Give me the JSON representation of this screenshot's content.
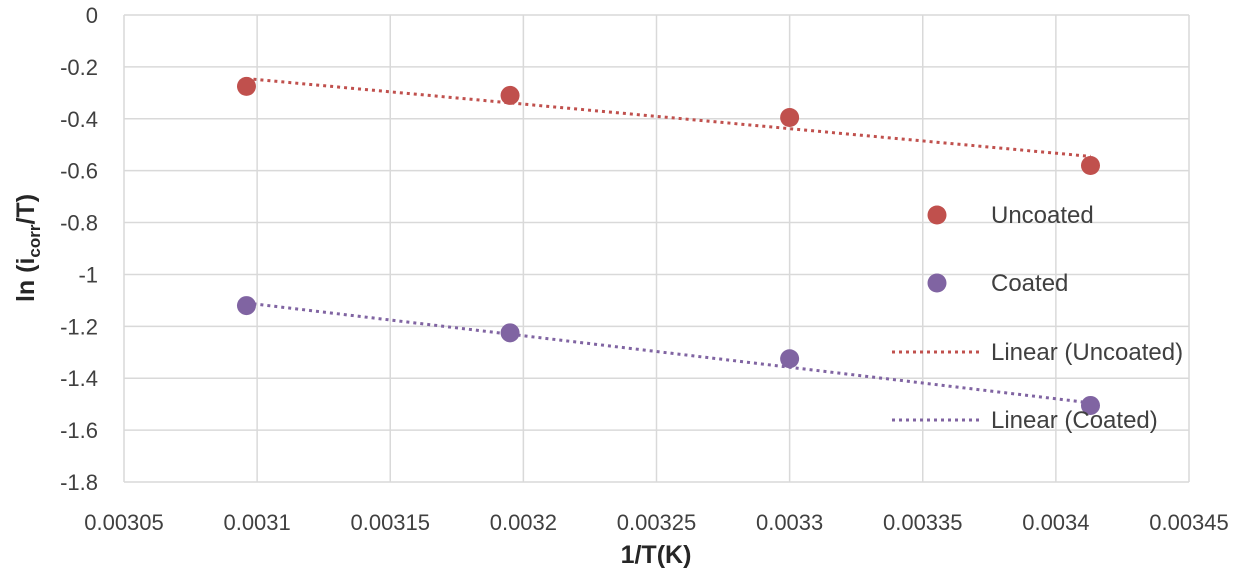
{
  "chart_data": {
    "type": "scatter",
    "xlabel": "1/T(K)",
    "ylabel": {
      "prefix": "ln (i",
      "subscript": "corr",
      "suffix": "/T)"
    },
    "xlim": [
      0.00305,
      0.00345
    ],
    "ylim": [
      -1.8,
      0
    ],
    "x_ticks": [
      0.00305,
      0.0031,
      0.00315,
      0.0032,
      0.00325,
      0.0033,
      0.00335,
      0.0034,
      0.00345
    ],
    "x_tick_labels": [
      "0.00305",
      "0.0031",
      "0.00315",
      "0.0032",
      "0.00325",
      "0.0033",
      "0.00335",
      "0.0034",
      "0.00345"
    ],
    "y_ticks": [
      0,
      -0.2,
      -0.4,
      -0.6,
      -0.8,
      -1,
      -1.2,
      -1.4,
      -1.6,
      -1.8
    ],
    "y_tick_labels": [
      "0",
      "-0.2",
      "-0.4",
      "-0.6",
      "-0.8",
      "-1",
      "-1.2",
      "-1.4",
      "-1.6",
      "-1.8"
    ],
    "grid": true,
    "legend_position": "right",
    "series": [
      {
        "name": "Uncoated",
        "color": "#c0504d",
        "x": [
          0.003096,
          0.003195,
          0.0033,
          0.003413
        ],
        "y": [
          -0.275,
          -0.31,
          -0.395,
          -0.58
        ],
        "trendline": {
          "name": "Linear (Uncoated)",
          "y_start": -0.245,
          "y_end": -0.545
        }
      },
      {
        "name": "Coated",
        "color": "#8064a2",
        "x": [
          0.003096,
          0.003195,
          0.0033,
          0.003413
        ],
        "y": [
          -1.12,
          -1.225,
          -1.325,
          -1.505
        ],
        "trendline": {
          "name": "Linear (Coated)",
          "y_start": -1.11,
          "y_end": -1.495
        }
      }
    ]
  }
}
